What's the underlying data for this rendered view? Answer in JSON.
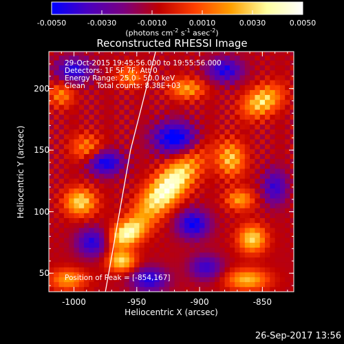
{
  "colorbar": {
    "ticks": [
      "-0.0050",
      "-0.0030",
      "-0.0010",
      "0.0010",
      "0.0030",
      "0.0050"
    ],
    "units_prefix": "(photons cm",
    "units_exp1": "-2",
    "units_mid": " s",
    "units_exp2": "-1",
    "units_mid2": " asec",
    "units_exp3": "-2",
    "units_suffix": ")",
    "colors": [
      "#0000ff",
      "#4a00c0",
      "#7a0080",
      "#c00000",
      "#ff4000",
      "#ffa000",
      "#ffffa0",
      "#ffffff"
    ]
  },
  "chart_data": {
    "type": "heatmap",
    "title": "Reconstructed RHESSI Image",
    "xlabel": "Heliocentric X (arcsec)",
    "ylabel": "Heliocentric Y (arcsec)",
    "xlim": [
      -1020,
      -825
    ],
    "ylim": [
      35,
      230
    ],
    "xticks": [
      "-1000",
      "-950",
      "-900",
      "-850"
    ],
    "yticks": [
      "50",
      "100",
      "150",
      "200"
    ],
    "value_range": [
      -0.005,
      0.005
    ],
    "sources": [
      {
        "x": -925,
        "y": 120,
        "sx": 24,
        "sy": 9,
        "rot": 48,
        "amp": 0.0055
      },
      {
        "x": -958,
        "y": 82,
        "sx": 11,
        "sy": 7,
        "rot": 30,
        "amp": 0.0045
      },
      {
        "x": -962,
        "y": 60,
        "sx": 8,
        "sy": 6,
        "rot": 0,
        "amp": 0.004
      },
      {
        "x": -995,
        "y": 108,
        "sx": 9,
        "sy": 8,
        "rot": 0,
        "amp": 0.004
      },
      {
        "x": -990,
        "y": 152,
        "sx": 9,
        "sy": 8,
        "rot": 0,
        "amp": 0.0025
      },
      {
        "x": -850,
        "y": 190,
        "sx": 12,
        "sy": 8,
        "rot": 30,
        "amp": 0.004
      },
      {
        "x": -875,
        "y": 143,
        "sx": 8,
        "sy": 10,
        "rot": 0,
        "amp": 0.0035
      },
      {
        "x": -858,
        "y": 78,
        "sx": 8,
        "sy": 8,
        "rot": 0,
        "amp": 0.004
      },
      {
        "x": -862,
        "y": 45,
        "sx": 12,
        "sy": 6,
        "rot": 0,
        "amp": 0.0035
      },
      {
        "x": -868,
        "y": 110,
        "sx": 8,
        "sy": 6,
        "rot": 0,
        "amp": 0.003
      },
      {
        "x": -910,
        "y": 200,
        "sx": 10,
        "sy": 6,
        "rot": 0,
        "amp": 0.003
      },
      {
        "x": -1005,
        "y": 45,
        "sx": 10,
        "sy": 6,
        "rot": 0,
        "amp": 0.003
      },
      {
        "x": -955,
        "y": 210,
        "sx": 8,
        "sy": 6,
        "rot": 0,
        "amp": 0.0025
      },
      {
        "x": -1010,
        "y": 195,
        "sx": 7,
        "sy": 7,
        "rot": 0,
        "amp": 0.0025
      },
      {
        "x": -975,
        "y": 140,
        "sx": 10,
        "sy": 7,
        "rot": 0,
        "amp": -0.004
      },
      {
        "x": -920,
        "y": 160,
        "sx": 12,
        "sy": 9,
        "rot": 0,
        "amp": -0.0045
      },
      {
        "x": -905,
        "y": 90,
        "sx": 9,
        "sy": 8,
        "rot": 0,
        "amp": -0.004
      },
      {
        "x": -985,
        "y": 75,
        "sx": 9,
        "sy": 8,
        "rot": 0,
        "amp": -0.0035
      },
      {
        "x": -880,
        "y": 215,
        "sx": 10,
        "sy": 7,
        "rot": 0,
        "amp": -0.0035
      },
      {
        "x": -1000,
        "y": 215,
        "sx": 10,
        "sy": 7,
        "rot": 0,
        "amp": -0.0035
      },
      {
        "x": -940,
        "y": 45,
        "sx": 10,
        "sy": 7,
        "rot": 0,
        "amp": -0.0035
      },
      {
        "x": -840,
        "y": 120,
        "sx": 7,
        "sy": 10,
        "rot": 0,
        "amp": -0.003
      },
      {
        "x": -895,
        "y": 55,
        "sx": 9,
        "sy": 7,
        "rot": 0,
        "amp": -0.003
      }
    ],
    "limb": [
      [
        -975,
        35
      ],
      [
        -955,
        150
      ],
      [
        -935,
        230
      ]
    ]
  },
  "info": {
    "line1": "29-Oct-2015 19:45:56.000 to 19:55:56.000",
    "line2": "Detectors: 1F 5F 7F, Att 0",
    "line3": "Energy Range: 25.0 - 50.0 keV",
    "line4": "Clean     Total counts: 8.38E+03",
    "peak": "Position of Peak = [-854,167]"
  },
  "timestamp": "26-Sep-2017 13:56"
}
